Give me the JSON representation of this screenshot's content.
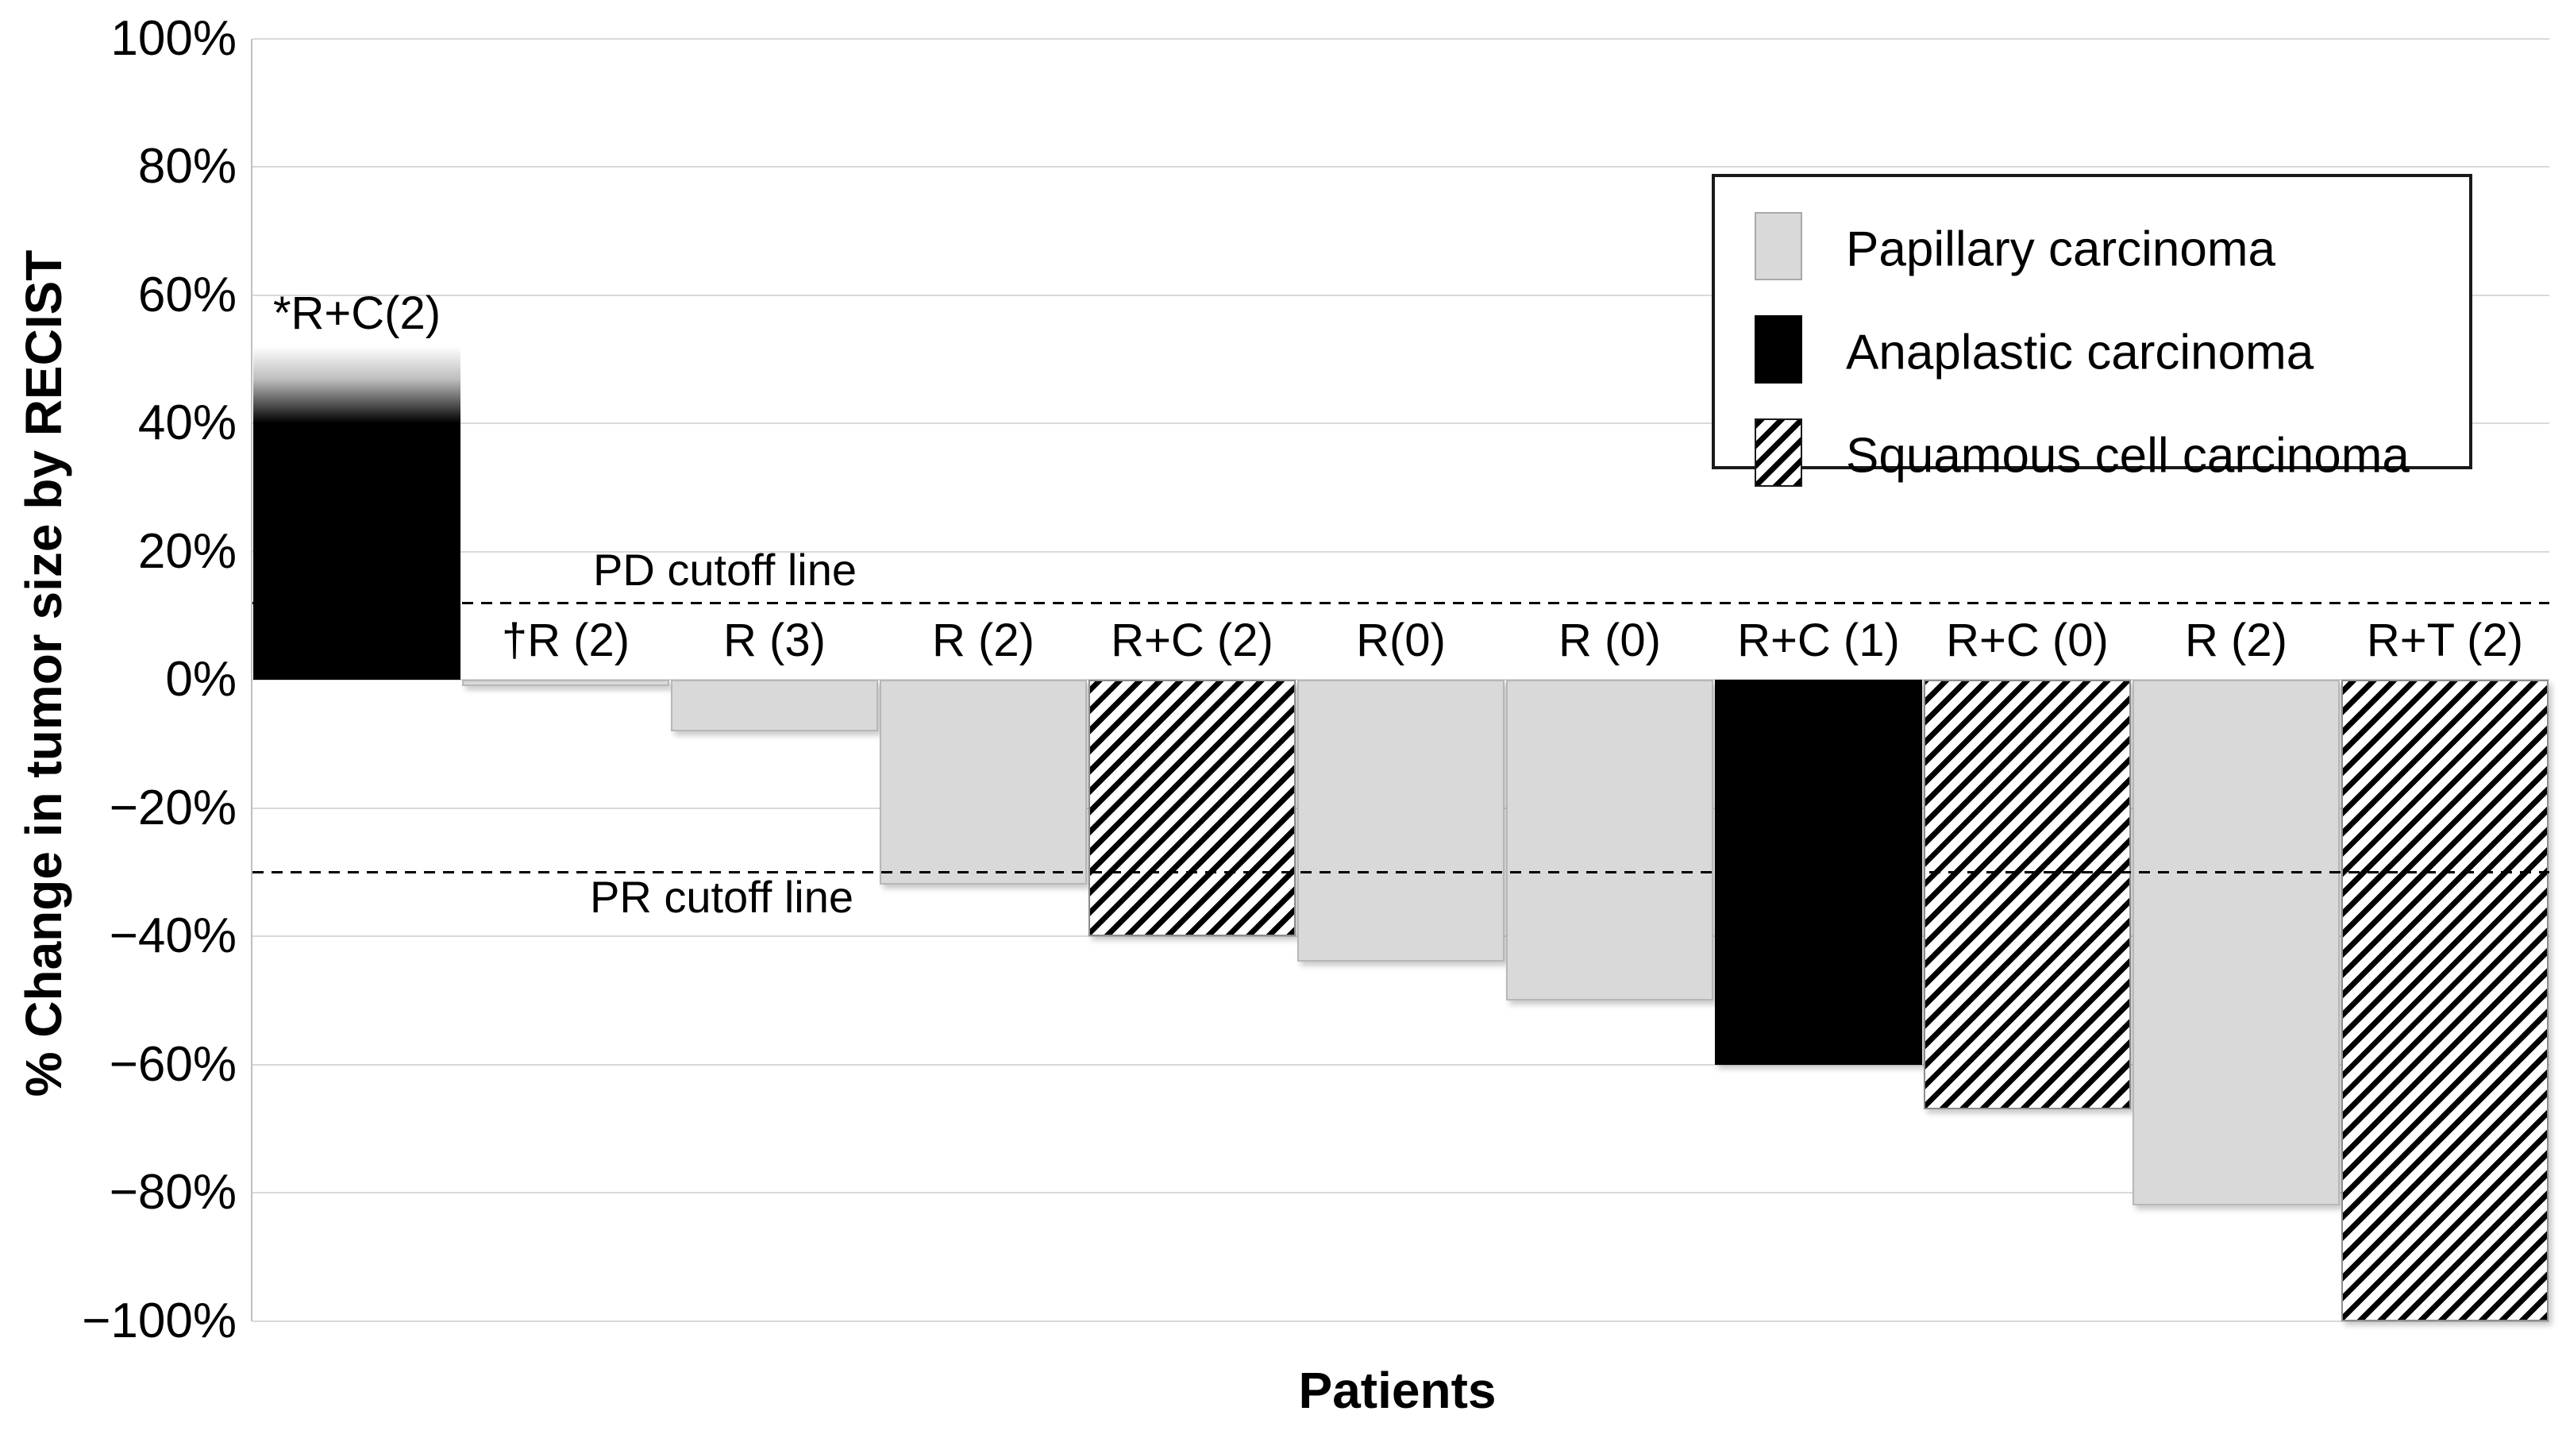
{
  "figure": {
    "y_axis": {
      "title": "% Change in tumor size by RECIST",
      "ticks": [
        {
          "label": "100%",
          "value": 100
        },
        {
          "label": "80%",
          "value": 80
        },
        {
          "label": "60%",
          "value": 60
        },
        {
          "label": "40%",
          "value": 40
        },
        {
          "label": "20%",
          "value": 20
        },
        {
          "label": "0%",
          "value": 0
        },
        {
          "label": "−20%",
          "value": -20
        },
        {
          "label": "−40%",
          "value": -40
        },
        {
          "label": "−60%",
          "value": -60
        },
        {
          "label": "−80%",
          "value": -80
        },
        {
          "label": "−100%",
          "value": -100
        }
      ]
    },
    "x_axis": {
      "title": "Patients"
    },
    "cutoff_lines": {
      "pd": {
        "label": "PD cutoff line",
        "value": 12
      },
      "pr": {
        "label": "PR cutoff line",
        "value": -30
      }
    },
    "legend": {
      "items": [
        {
          "label": "Papillary carcinoma",
          "pattern": "papillary",
          "fill": "#d9d9d9"
        },
        {
          "label": "Anaplastic carcinoma",
          "pattern": "anaplastic",
          "fill": "#000000"
        },
        {
          "label": "Squamous cell carcinoma",
          "pattern": "squamous",
          "fill": "diagonal-hatch"
        }
      ]
    },
    "bars": [
      {
        "label": "*R+C(2)",
        "value": 52,
        "histology": "anaplastic",
        "truncated": true
      },
      {
        "label": "†R (2)",
        "value": -1,
        "histology": "papillary"
      },
      {
        "label": "R (3)",
        "value": -8,
        "histology": "papillary"
      },
      {
        "label": "R (2)",
        "value": -32,
        "histology": "papillary"
      },
      {
        "label": "R+C (2)",
        "value": -40,
        "histology": "squamous"
      },
      {
        "label": "R(0)",
        "value": -44,
        "histology": "papillary"
      },
      {
        "label": "R (0)",
        "value": -50,
        "histology": "papillary"
      },
      {
        "label": "R+C (1)",
        "value": -60,
        "histology": "anaplastic"
      },
      {
        "label": "R+C (0)",
        "value": -67,
        "histology": "squamous"
      },
      {
        "label": "R (2)",
        "value": -82,
        "histology": "papillary"
      },
      {
        "label": "R+T (2)",
        "value": -100,
        "histology": "squamous"
      }
    ],
    "colors": {
      "papillary_fill": "#d9d9d9",
      "anaplastic_fill": "#000000",
      "squamous_hatch": "#000000",
      "gridline": "#d9d9d9",
      "axis_line": "#bfbfbf",
      "cutoff_line": "#000000"
    }
  },
  "chart_data": {
    "type": "bar",
    "title": "",
    "categories": [
      "*R+C(2)",
      "†R (2)",
      "R (3)",
      "R (2)",
      "R+C (2)",
      "R(0)",
      "R (0)",
      "R+C (1)",
      "R+C (0)",
      "R (2)",
      "R+T (2)"
    ],
    "values": [
      52,
      -1,
      -8,
      -32,
      -40,
      -44,
      -50,
      -60,
      -67,
      -82,
      -100
    ],
    "groups": [
      "Anaplastic carcinoma",
      "Papillary carcinoma",
      "Papillary carcinoma",
      "Papillary carcinoma",
      "Squamous cell carcinoma",
      "Papillary carcinoma",
      "Papillary carcinoma",
      "Anaplastic carcinoma",
      "Squamous cell carcinoma",
      "Papillary carcinoma",
      "Squamous cell carcinoma"
    ],
    "xlabel": "Patients",
    "ylabel": "% Change in tumor size by RECIST",
    "ylim": [
      -100,
      100
    ],
    "ytick_step": 20,
    "grid": "horizontal",
    "legend_position": "upper-right",
    "legend_entries": [
      "Papillary carcinoma",
      "Anaplastic carcinoma",
      "Squamous cell carcinoma"
    ],
    "annotations": [
      {
        "label": "PD cutoff line",
        "y": 12,
        "style": "dashed"
      },
      {
        "label": "PR cutoff line",
        "y": -30,
        "style": "dashed"
      }
    ],
    "notes": "Waterfall plot; first bar (*R+C(2), anaplastic) is truncated: solid black up to +40% fading out to white at about +52%."
  }
}
